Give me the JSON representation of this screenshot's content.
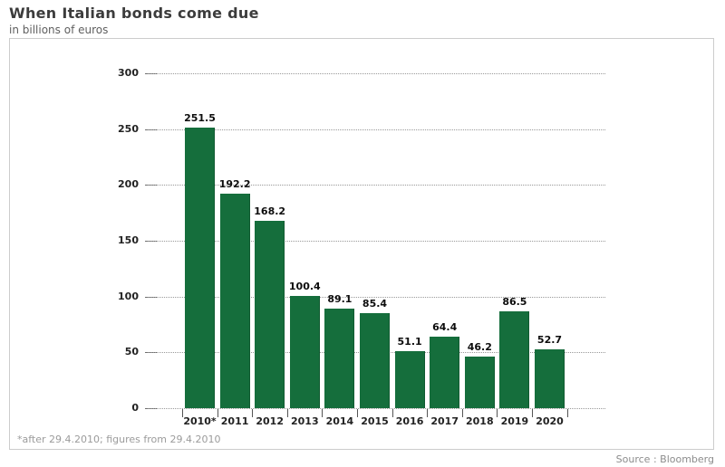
{
  "header": {
    "title": "When Italian bonds come due",
    "subtitle": "in billions of euros"
  },
  "footnote": "*after 29.4.2010; figures from 29.4.2010",
  "source": "Source : Bloomberg",
  "colors": {
    "bar": "#156e3c",
    "grid": "#999999",
    "frame_border": "#cccccc",
    "title_text": "#3c3c3c",
    "axis_text": "#222222",
    "muted_text": "#9b9b9b"
  },
  "chart_data": {
    "type": "bar",
    "title": "When Italian bonds come due",
    "subtitle": "in billions of euros",
    "xlabel": "",
    "ylabel": "in billions of euros",
    "categories": [
      "2010*",
      "2011",
      "2012",
      "2013",
      "2014",
      "2015",
      "2016",
      "2017",
      "2018",
      "2019",
      "2020"
    ],
    "values": [
      251.5,
      192.2,
      168.2,
      100.4,
      89.1,
      85.4,
      51.1,
      64.4,
      46.2,
      86.5,
      52.7
    ],
    "ylim": [
      0,
      300
    ],
    "yticks": [
      0,
      50,
      100,
      150,
      200,
      250,
      300
    ],
    "grid": "horizontal-dotted",
    "legend": "none",
    "bar_color": "#156e3c",
    "value_labels": "above-bars"
  }
}
